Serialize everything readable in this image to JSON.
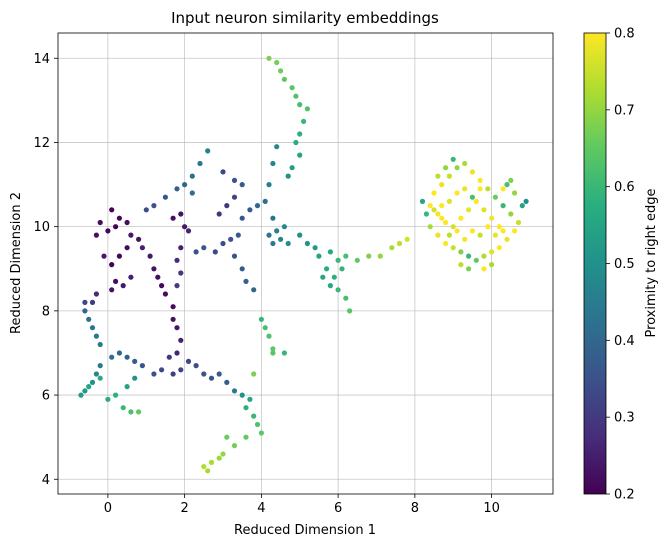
{
  "chart_data": {
    "type": "scatter",
    "title": "Input neuron similarity embeddings",
    "xlabel": "Reduced Dimension 1",
    "ylabel": "Reduced Dimension 2",
    "colorbar_label": "Proximity to right edge",
    "xlim": [
      -1.3,
      11.6
    ],
    "ylim": [
      3.65,
      14.6
    ],
    "xticks": [
      0,
      2,
      4,
      6,
      8,
      10
    ],
    "yticks": [
      4,
      6,
      8,
      10,
      12,
      14
    ],
    "colorbar_range": [
      0.2,
      0.8
    ],
    "colorbar_ticks": [
      "0.2",
      "0.3",
      "0.4",
      "0.5",
      "0.6",
      "0.7",
      "0.8"
    ],
    "colormap": "viridis",
    "grid": true,
    "legend": "none",
    "points": [
      [
        0.1,
        10.4,
        0.2
      ],
      [
        0.3,
        10.2,
        0.21
      ],
      [
        0.5,
        10.1,
        0.22
      ],
      [
        0.2,
        10.0,
        0.2
      ],
      [
        0.0,
        9.9,
        0.21
      ],
      [
        -0.3,
        9.8,
        0.23
      ],
      [
        -0.2,
        10.1,
        0.22
      ],
      [
        0.6,
        9.8,
        0.24
      ],
      [
        0.8,
        9.7,
        0.23
      ],
      [
        0.5,
        9.5,
        0.22
      ],
      [
        0.3,
        9.3,
        0.21
      ],
      [
        0.1,
        9.1,
        0.2
      ],
      [
        -0.1,
        9.3,
        0.24
      ],
      [
        0.9,
        9.5,
        0.25
      ],
      [
        1.1,
        9.3,
        0.24
      ],
      [
        1.2,
        9.0,
        0.23
      ],
      [
        1.3,
        8.8,
        0.22
      ],
      [
        1.4,
        8.6,
        0.21
      ],
      [
        1.5,
        8.4,
        0.22
      ],
      [
        0.2,
        8.7,
        0.22
      ],
      [
        0.1,
        8.5,
        0.23
      ],
      [
        -0.3,
        8.4,
        0.27
      ],
      [
        -0.4,
        8.2,
        0.3
      ],
      [
        -0.6,
        8.2,
        0.33
      ],
      [
        -0.6,
        8.0,
        0.4
      ],
      [
        -0.5,
        7.8,
        0.42
      ],
      [
        -0.4,
        7.6,
        0.43
      ],
      [
        -0.3,
        7.4,
        0.44
      ],
      [
        -0.2,
        7.2,
        0.45
      ],
      [
        0.6,
        8.8,
        0.25
      ],
      [
        0.4,
        8.6,
        0.24
      ],
      [
        1.7,
        8.1,
        0.22
      ],
      [
        1.7,
        7.8,
        0.23
      ],
      [
        1.8,
        7.6,
        0.24
      ],
      [
        1.9,
        7.3,
        0.25
      ],
      [
        1.8,
        7.0,
        0.26
      ],
      [
        1.6,
        6.9,
        0.3
      ],
      [
        1.9,
        9.5,
        0.25
      ],
      [
        1.8,
        9.2,
        0.27
      ],
      [
        1.9,
        8.9,
        0.29
      ],
      [
        1.8,
        8.6,
        0.31
      ],
      [
        1.7,
        10.2,
        0.22
      ],
      [
        1.9,
        10.3,
        0.23
      ],
      [
        2.0,
        10.0,
        0.24
      ],
      [
        2.1,
        9.9,
        0.26
      ],
      [
        2.0,
        11.0,
        0.4
      ],
      [
        2.2,
        11.2,
        0.42
      ],
      [
        2.4,
        11.5,
        0.44
      ],
      [
        2.6,
        11.8,
        0.46
      ],
      [
        1.8,
        10.9,
        0.38
      ],
      [
        1.5,
        10.7,
        0.36
      ],
      [
        1.2,
        10.5,
        0.35
      ],
      [
        1.0,
        10.4,
        0.34
      ],
      [
        2.2,
        10.8,
        0.41
      ],
      [
        3.0,
        11.3,
        0.33
      ],
      [
        3.3,
        11.1,
        0.35
      ],
      [
        3.5,
        11.0,
        0.37
      ],
      [
        3.3,
        10.7,
        0.32
      ],
      [
        3.1,
        10.5,
        0.3
      ],
      [
        2.9,
        10.3,
        0.29
      ],
      [
        3.5,
        10.2,
        0.35
      ],
      [
        3.7,
        10.4,
        0.37
      ],
      [
        3.9,
        10.5,
        0.4
      ],
      [
        4.1,
        10.6,
        0.42
      ],
      [
        4.2,
        11.0,
        0.45
      ],
      [
        4.3,
        11.5,
        0.47
      ],
      [
        4.4,
        11.9,
        0.48
      ],
      [
        4.3,
        10.2,
        0.43
      ],
      [
        3.2,
        9.7,
        0.35
      ],
      [
        3.4,
        9.8,
        0.37
      ],
      [
        3.0,
        9.6,
        0.34
      ],
      [
        2.8,
        9.4,
        0.33
      ],
      [
        2.5,
        9.5,
        0.36
      ],
      [
        2.3,
        9.4,
        0.35
      ],
      [
        3.3,
        9.3,
        0.36
      ],
      [
        3.5,
        9.0,
        0.37
      ],
      [
        3.6,
        8.7,
        0.39
      ],
      [
        3.8,
        8.5,
        0.4
      ],
      [
        4.2,
        9.8,
        0.44
      ],
      [
        4.3,
        9.6,
        0.45
      ],
      [
        4.5,
        9.7,
        0.47
      ],
      [
        4.7,
        9.6,
        0.49
      ],
      [
        5.0,
        9.8,
        0.5
      ],
      [
        5.2,
        9.6,
        0.51
      ],
      [
        5.4,
        9.5,
        0.52
      ],
      [
        4.6,
        10.0,
        0.48
      ],
      [
        4.4,
        9.9,
        0.46
      ],
      [
        2.5,
        6.5,
        0.35
      ],
      [
        2.7,
        6.4,
        0.36
      ],
      [
        2.9,
        6.5,
        0.37
      ],
      [
        3.1,
        6.3,
        0.38
      ],
      [
        3.3,
        6.1,
        0.45
      ],
      [
        3.5,
        6.0,
        0.5
      ],
      [
        3.7,
        5.9,
        0.55
      ],
      [
        3.6,
        5.7,
        0.58
      ],
      [
        3.8,
        5.5,
        0.6
      ],
      [
        3.9,
        5.3,
        0.63
      ],
      [
        4.0,
        5.1,
        0.65
      ],
      [
        2.1,
        6.8,
        0.33
      ],
      [
        2.3,
        6.7,
        0.34
      ],
      [
        1.9,
        6.6,
        0.32
      ],
      [
        1.7,
        6.5,
        0.31
      ],
      [
        1.4,
        6.6,
        0.33
      ],
      [
        1.2,
        6.5,
        0.35
      ],
      [
        0.9,
        6.7,
        0.36
      ],
      [
        0.7,
        6.8,
        0.37
      ],
      [
        0.5,
        6.9,
        0.38
      ],
      [
        0.3,
        7.0,
        0.4
      ],
      [
        0.1,
        6.9,
        0.42
      ],
      [
        -0.2,
        6.7,
        0.44
      ],
      [
        -0.3,
        6.5,
        0.47
      ],
      [
        -0.4,
        6.3,
        0.5
      ],
      [
        -0.6,
        6.1,
        0.52
      ],
      [
        -0.7,
        6.0,
        0.53
      ],
      [
        -0.5,
        6.2,
        0.55
      ],
      [
        -0.2,
        6.4,
        0.57
      ],
      [
        0.0,
        5.9,
        0.57
      ],
      [
        0.2,
        6.0,
        0.58
      ],
      [
        0.4,
        5.7,
        0.6
      ],
      [
        0.6,
        5.6,
        0.62
      ],
      [
        0.8,
        5.6,
        0.65
      ],
      [
        0.5,
        6.2,
        0.55
      ],
      [
        0.7,
        6.4,
        0.5
      ],
      [
        3.0,
        4.6,
        0.7
      ],
      [
        2.9,
        4.5,
        0.71
      ],
      [
        2.7,
        4.4,
        0.72
      ],
      [
        2.5,
        4.3,
        0.73
      ],
      [
        2.6,
        4.2,
        0.72
      ],
      [
        3.1,
        5.0,
        0.66
      ],
      [
        3.3,
        4.8,
        0.67
      ],
      [
        3.6,
        5.0,
        0.65
      ],
      [
        3.8,
        6.5,
        0.68
      ],
      [
        4.0,
        7.8,
        0.6
      ],
      [
        4.1,
        7.6,
        0.62
      ],
      [
        4.2,
        7.4,
        0.63
      ],
      [
        4.3,
        7.1,
        0.65
      ],
      [
        4.6,
        7.0,
        0.6
      ],
      [
        4.3,
        7.0,
        0.64
      ],
      [
        4.2,
        14.0,
        0.68
      ],
      [
        4.4,
        13.9,
        0.67
      ],
      [
        4.5,
        13.7,
        0.66
      ],
      [
        4.6,
        13.5,
        0.65
      ],
      [
        4.8,
        13.3,
        0.64
      ],
      [
        4.9,
        13.1,
        0.63
      ],
      [
        5.0,
        12.9,
        0.62
      ],
      [
        5.2,
        12.8,
        0.63
      ],
      [
        5.1,
        12.5,
        0.6
      ],
      [
        5.0,
        12.2,
        0.58
      ],
      [
        4.9,
        12.0,
        0.57
      ],
      [
        5.0,
        11.7,
        0.55
      ],
      [
        4.8,
        11.4,
        0.53
      ],
      [
        4.7,
        11.2,
        0.5
      ],
      [
        5.5,
        9.3,
        0.55
      ],
      [
        5.7,
        9.0,
        0.57
      ],
      [
        5.9,
        8.8,
        0.58
      ],
      [
        6.0,
        8.5,
        0.6
      ],
      [
        6.2,
        8.3,
        0.62
      ],
      [
        6.3,
        8.0,
        0.64
      ],
      [
        5.6,
        8.8,
        0.55
      ],
      [
        5.8,
        8.6,
        0.56
      ],
      [
        6.0,
        9.2,
        0.6
      ],
      [
        6.2,
        9.3,
        0.62
      ],
      [
        6.5,
        9.2,
        0.65
      ],
      [
        6.8,
        9.3,
        0.68
      ],
      [
        7.1,
        9.3,
        0.7
      ],
      [
        7.4,
        9.5,
        0.72
      ],
      [
        7.6,
        9.6,
        0.74
      ],
      [
        7.8,
        9.7,
        0.76
      ],
      [
        6.1,
        9.0,
        0.59
      ],
      [
        5.8,
        9.4,
        0.56
      ],
      [
        8.5,
        10.8,
        0.8
      ],
      [
        8.7,
        11.0,
        0.78
      ],
      [
        8.9,
        11.2,
        0.75
      ],
      [
        9.1,
        11.4,
        0.7
      ],
      [
        9.3,
        11.5,
        0.72
      ],
      [
        9.5,
        11.3,
        0.78
      ],
      [
        9.7,
        11.1,
        0.8
      ],
      [
        9.9,
        10.9,
        0.74
      ],
      [
        10.1,
        10.7,
        0.66
      ],
      [
        10.3,
        10.5,
        0.6
      ],
      [
        10.5,
        10.3,
        0.7
      ],
      [
        10.7,
        10.1,
        0.75
      ],
      [
        10.6,
        9.9,
        0.8
      ],
      [
        10.4,
        9.7,
        0.78
      ],
      [
        10.2,
        9.5,
        0.8
      ],
      [
        10.0,
        9.4,
        0.77
      ],
      [
        9.8,
        9.3,
        0.73
      ],
      [
        9.6,
        9.2,
        0.65
      ],
      [
        9.4,
        9.3,
        0.6
      ],
      [
        9.2,
        9.4,
        0.68
      ],
      [
        9.0,
        9.5,
        0.75
      ],
      [
        8.8,
        9.6,
        0.8
      ],
      [
        8.6,
        9.8,
        0.78
      ],
      [
        8.4,
        10.0,
        0.72
      ],
      [
        8.3,
        10.3,
        0.6
      ],
      [
        8.2,
        10.6,
        0.55
      ],
      [
        8.4,
        10.5,
        0.8
      ],
      [
        8.6,
        10.3,
        0.79
      ],
      [
        8.8,
        10.1,
        0.8
      ],
      [
        9.0,
        10.0,
        0.76
      ],
      [
        9.2,
        10.2,
        0.8
      ],
      [
        9.4,
        10.4,
        0.78
      ],
      [
        9.6,
        10.6,
        0.8
      ],
      [
        9.8,
        10.4,
        0.77
      ],
      [
        10.0,
        10.2,
        0.79
      ],
      [
        10.2,
        10.0,
        0.8
      ],
      [
        9.1,
        10.8,
        0.8
      ],
      [
        9.3,
        10.9,
        0.78
      ],
      [
        9.5,
        10.7,
        0.62
      ],
      [
        9.7,
        10.9,
        0.8
      ],
      [
        8.9,
        10.6,
        0.77
      ],
      [
        8.7,
        10.5,
        0.8
      ],
      [
        9.0,
        11.6,
        0.6
      ],
      [
        8.8,
        11.4,
        0.7
      ],
      [
        10.4,
        11.0,
        0.62
      ],
      [
        10.6,
        10.8,
        0.7
      ],
      [
        10.8,
        10.5,
        0.55
      ],
      [
        10.9,
        10.6,
        0.5
      ],
      [
        10.5,
        11.1,
        0.68
      ],
      [
        10.3,
        10.9,
        0.8
      ],
      [
        9.9,
        10.0,
        0.8
      ],
      [
        9.7,
        9.8,
        0.75
      ],
      [
        9.5,
        9.9,
        0.8
      ],
      [
        9.3,
        9.7,
        0.79
      ],
      [
        9.1,
        9.9,
        0.8
      ],
      [
        8.9,
        9.8,
        0.74
      ],
      [
        8.7,
        10.2,
        0.8
      ],
      [
        8.5,
        10.4,
        0.76
      ],
      [
        10.1,
        9.8,
        0.78
      ],
      [
        10.3,
        9.9,
        0.8
      ],
      [
        9.4,
        9.0,
        0.68
      ],
      [
        9.2,
        9.1,
        0.74
      ],
      [
        9.8,
        9.0,
        0.8
      ],
      [
        10.0,
        9.1,
        0.72
      ],
      [
        8.6,
        11.2,
        0.74
      ]
    ]
  }
}
